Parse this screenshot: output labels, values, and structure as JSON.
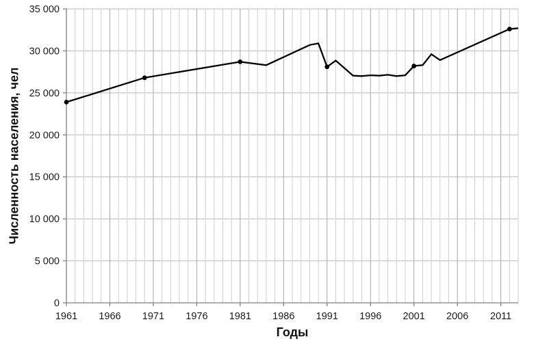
{
  "chart_data": {
    "type": "line",
    "title": "",
    "xlabel": "Годы",
    "ylabel": "Численность населения, чел",
    "x_range": [
      1961,
      2013
    ],
    "x_major_ticks": [
      1961,
      1966,
      1971,
      1976,
      1981,
      1986,
      1991,
      1996,
      2001,
      2006,
      2011
    ],
    "x_minor_step": 1,
    "ylim": [
      0,
      35000
    ],
    "y_tick_step": 5000,
    "y_ticks": [
      {
        "value": 0,
        "label": "0"
      },
      {
        "value": 5000,
        "label": "5 000"
      },
      {
        "value": 10000,
        "label": "10 000"
      },
      {
        "value": 15000,
        "label": "15 000"
      },
      {
        "value": 20000,
        "label": "20 000"
      },
      {
        "value": 25000,
        "label": "25 000"
      },
      {
        "value": 30000,
        "label": "30 000"
      },
      {
        "value": 35000,
        "label": "35 000"
      }
    ],
    "grid": true,
    "legend": "none",
    "series": [
      {
        "name": "Численность населения",
        "color": "#000000",
        "points": [
          [
            1961,
            23900
          ],
          [
            1970,
            26800
          ],
          [
            1981,
            28700
          ],
          [
            1984,
            28300
          ],
          [
            1989,
            30700
          ],
          [
            1990,
            30900
          ],
          [
            1991,
            28100
          ],
          [
            1992,
            28850
          ],
          [
            1994,
            27050
          ],
          [
            1995,
            27000
          ],
          [
            1996,
            27100
          ],
          [
            1997,
            27050
          ],
          [
            1998,
            27150
          ],
          [
            1999,
            27000
          ],
          [
            2000,
            27100
          ],
          [
            2001,
            28200
          ],
          [
            2002,
            28300
          ],
          [
            2003,
            29600
          ],
          [
            2004,
            28900
          ],
          [
            2012,
            32600
          ],
          [
            2013,
            32700
          ]
        ],
        "marker_years": [
          1961,
          1970,
          1981,
          1991,
          2001,
          2012
        ]
      }
    ]
  },
  "colors": {
    "line": "#000000",
    "grid_minor": "#cfcfcf",
    "grid_major": "#a6a6a6",
    "grid_horizontal": "#b8b8b8",
    "axis": "#7f7f7f",
    "tick_text": "#1a1a1a",
    "background": "#ffffff"
  }
}
